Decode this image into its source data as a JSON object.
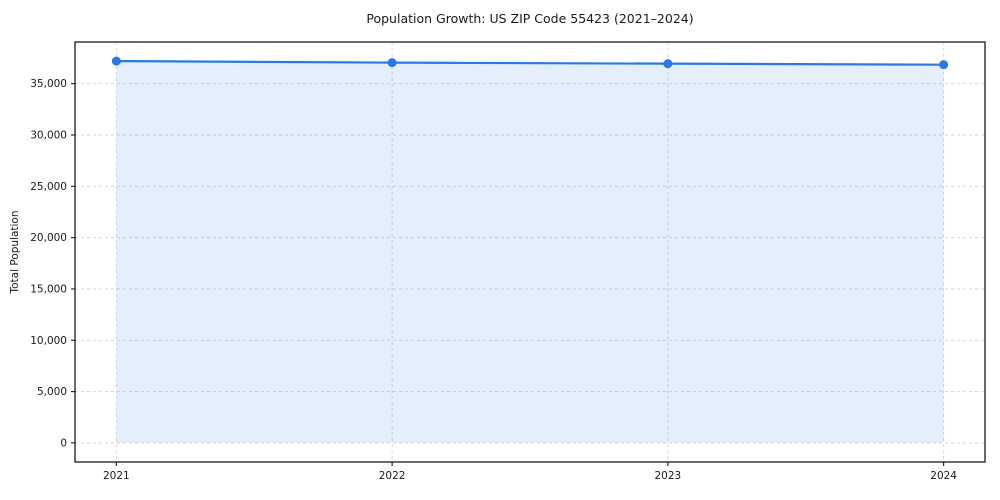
{
  "chart_data": {
    "type": "line",
    "title": "Population Growth: US ZIP Code 55423 (2021–2024)",
    "xlabel": "",
    "ylabel": "Total Population",
    "x": [
      2021,
      2022,
      2023,
      2024
    ],
    "categories": [
      "2021",
      "2022",
      "2023",
      "2024"
    ],
    "series": [
      {
        "name": "Total Population",
        "values": [
          37200,
          37050,
          36950,
          36850
        ]
      }
    ],
    "yticks": [
      0,
      5000,
      10000,
      15000,
      20000,
      25000,
      30000,
      35000
    ],
    "ylim": [
      0,
      39000
    ],
    "grid": true,
    "grid_style": "dashed",
    "legend": false,
    "marker": "circle",
    "area_fill": true,
    "colors": {
      "line": "#2878e8",
      "marker": "#2878e8",
      "fill": "#2878e8",
      "fill_opacity": "0.12",
      "grid": "#d4d4d4",
      "axis": "#1a1a1a",
      "background": "#ffffff"
    }
  }
}
